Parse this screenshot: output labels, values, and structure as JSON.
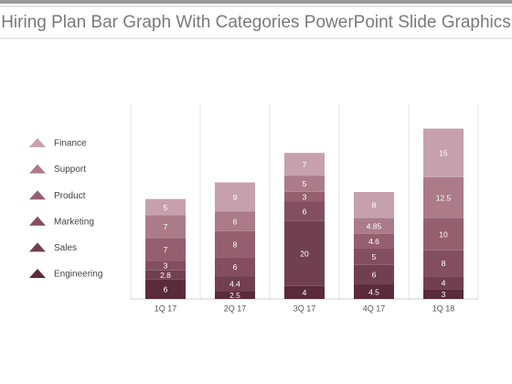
{
  "chart_data": {
    "type": "stacked-bar",
    "title": "Hiring Plan Bar Graph With Categories PowerPoint Slide Graphics",
    "categories": [
      "1Q 17",
      "2Q 17",
      "3Q 17",
      "4Q 17",
      "1Q 18"
    ],
    "series": [
      {
        "name": "Engineering",
        "color": "#5a2b3b",
        "values": [
          6,
          2.5,
          4,
          4.5,
          3
        ]
      },
      {
        "name": "Sales",
        "color": "#714050",
        "values": [
          2.8,
          4.4,
          20,
          6,
          4
        ]
      },
      {
        "name": "Marketing",
        "color": "#834f60",
        "values": [
          3,
          6,
          6,
          5,
          8
        ]
      },
      {
        "name": "Product",
        "color": "#955f70",
        "values": [
          7,
          8,
          3,
          4.6,
          10
        ]
      },
      {
        "name": "Support",
        "color": "#ab7b8a",
        "values": [
          7,
          6,
          5,
          4.85,
          12.5
        ]
      },
      {
        "name": "Finance",
        "color": "#c6a1ad",
        "values": [
          5,
          9,
          7,
          8,
          15
        ]
      }
    ],
    "ylim": [
      0,
      60
    ]
  }
}
